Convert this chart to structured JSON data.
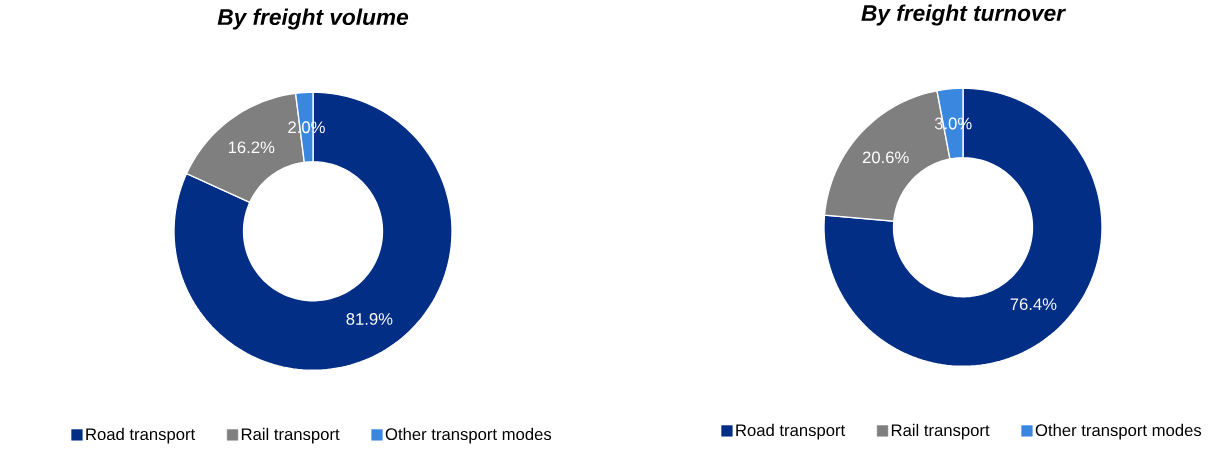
{
  "chart_data": [
    {
      "type": "donut",
      "title": "By freight volume",
      "categories": [
        "Road transport",
        "Rail transport",
        "Other transport modes"
      ],
      "values": [
        81.9,
        16.2,
        2.0
      ],
      "colors": [
        "#032e85",
        "#7f7f7f",
        "#3a87e0"
      ],
      "value_labels": [
        "81.9%",
        "16.2%",
        "2.0%"
      ],
      "legend": "bottom"
    },
    {
      "type": "donut",
      "title": "By freight turnover",
      "categories": [
        "Road transport",
        "Rail transport",
        "Other transport modes"
      ],
      "values": [
        76.4,
        20.6,
        3.0
      ],
      "colors": [
        "#032e85",
        "#7f7f7f",
        "#3a87e0"
      ],
      "value_labels": [
        "76.4%",
        "20.6%",
        "3.0%"
      ],
      "legend": "bottom"
    }
  ]
}
